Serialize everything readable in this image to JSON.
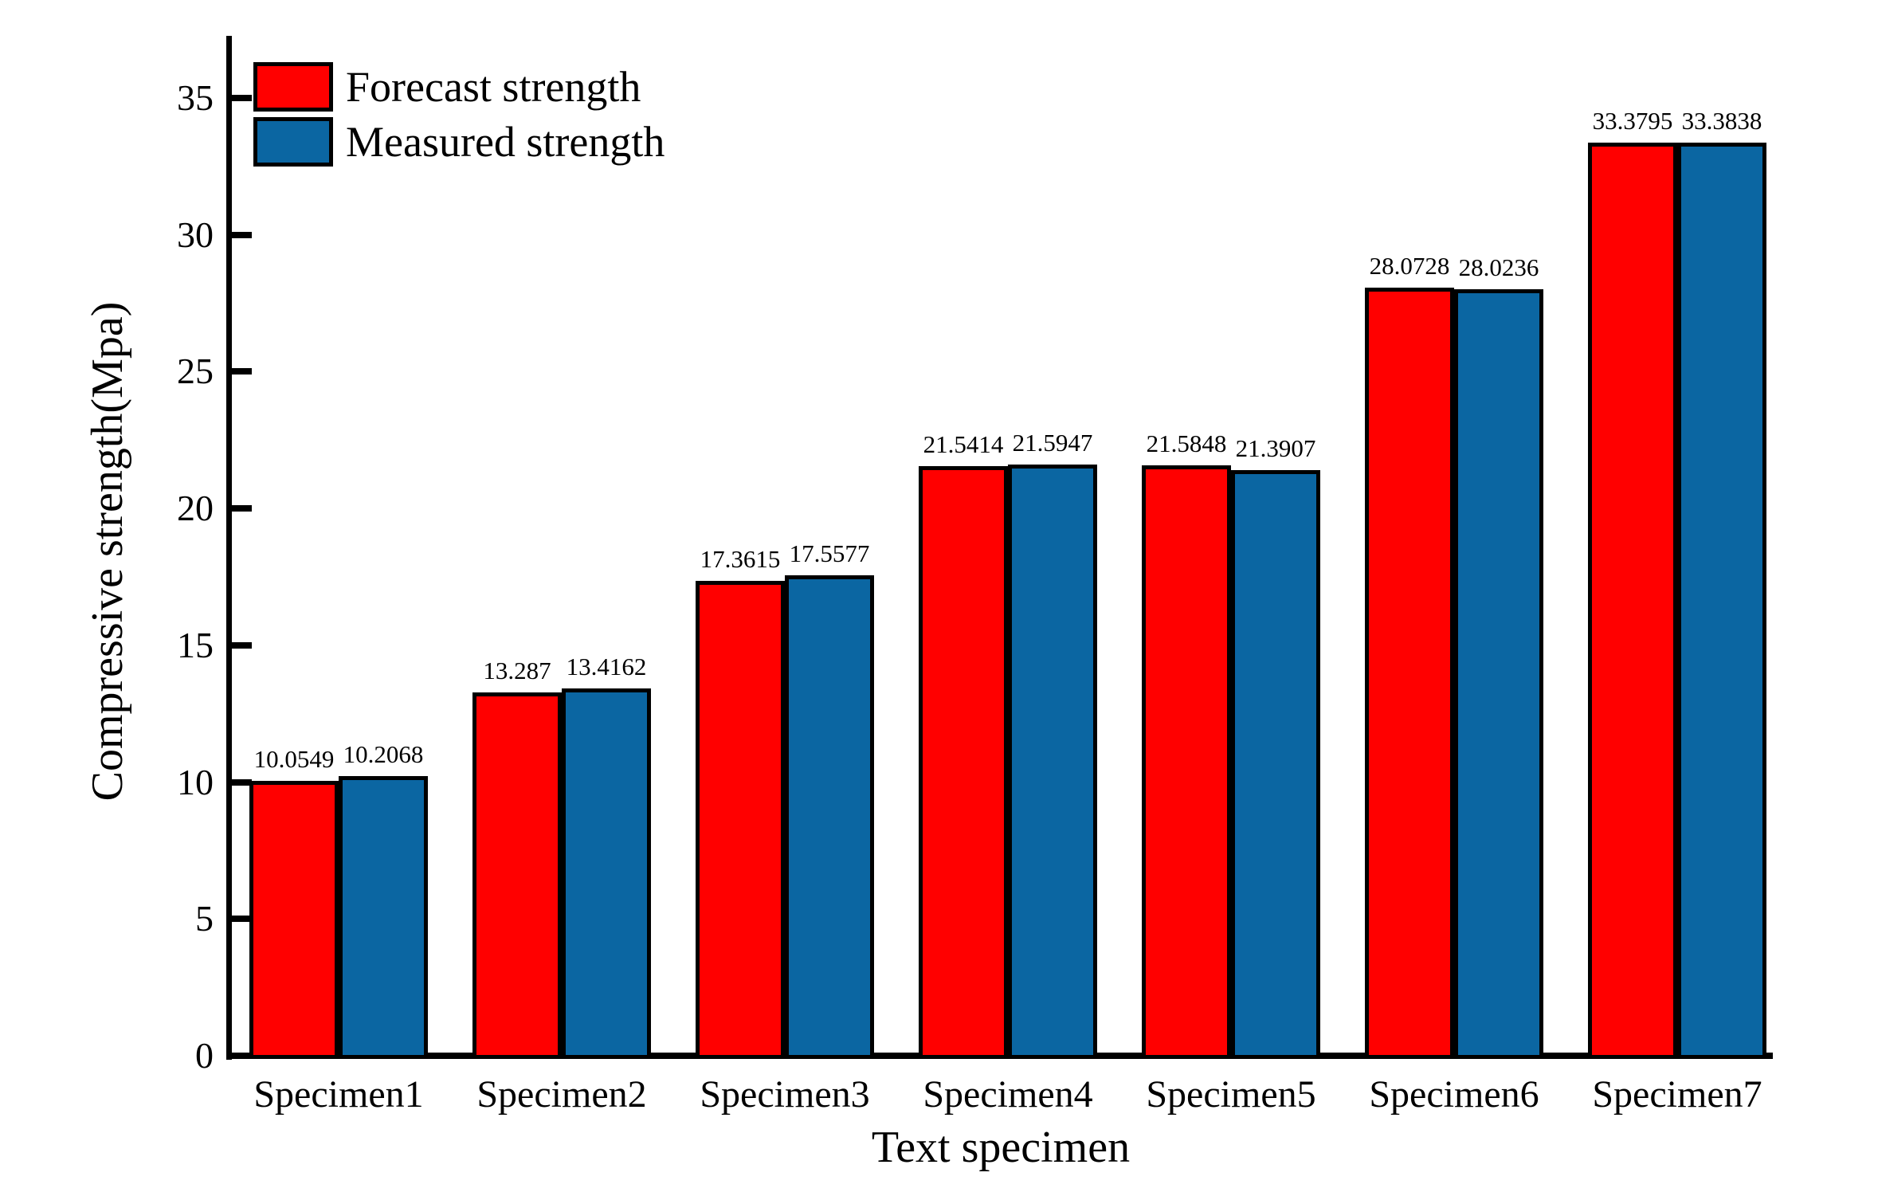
{
  "chart_data": {
    "type": "bar",
    "title": "",
    "xlabel": "Text specimen",
    "ylabel": "Compressive strength(Mpa)",
    "categories": [
      "Specimen1",
      "Specimen2",
      "Specimen3",
      "Specimen4",
      "Specimen5",
      "Specimen6",
      "Specimen7"
    ],
    "series": [
      {
        "name": "Forecast strength",
        "color": "#ff0000",
        "values": [
          10.0549,
          13.287,
          17.3615,
          21.5414,
          21.5848,
          28.0728,
          33.3795
        ]
      },
      {
        "name": "Measured strength",
        "color": "#0b66a2",
        "values": [
          10.2068,
          13.4162,
          17.5577,
          21.5947,
          21.3907,
          28.0236,
          33.3838
        ]
      }
    ],
    "ylim": [
      0,
      35
    ],
    "yticks": [
      0,
      5,
      10,
      15,
      20,
      25,
      30,
      35
    ],
    "grid": false,
    "legend_position": "top-left",
    "bar_border_color": "#000000",
    "value_labels_shown": true
  }
}
